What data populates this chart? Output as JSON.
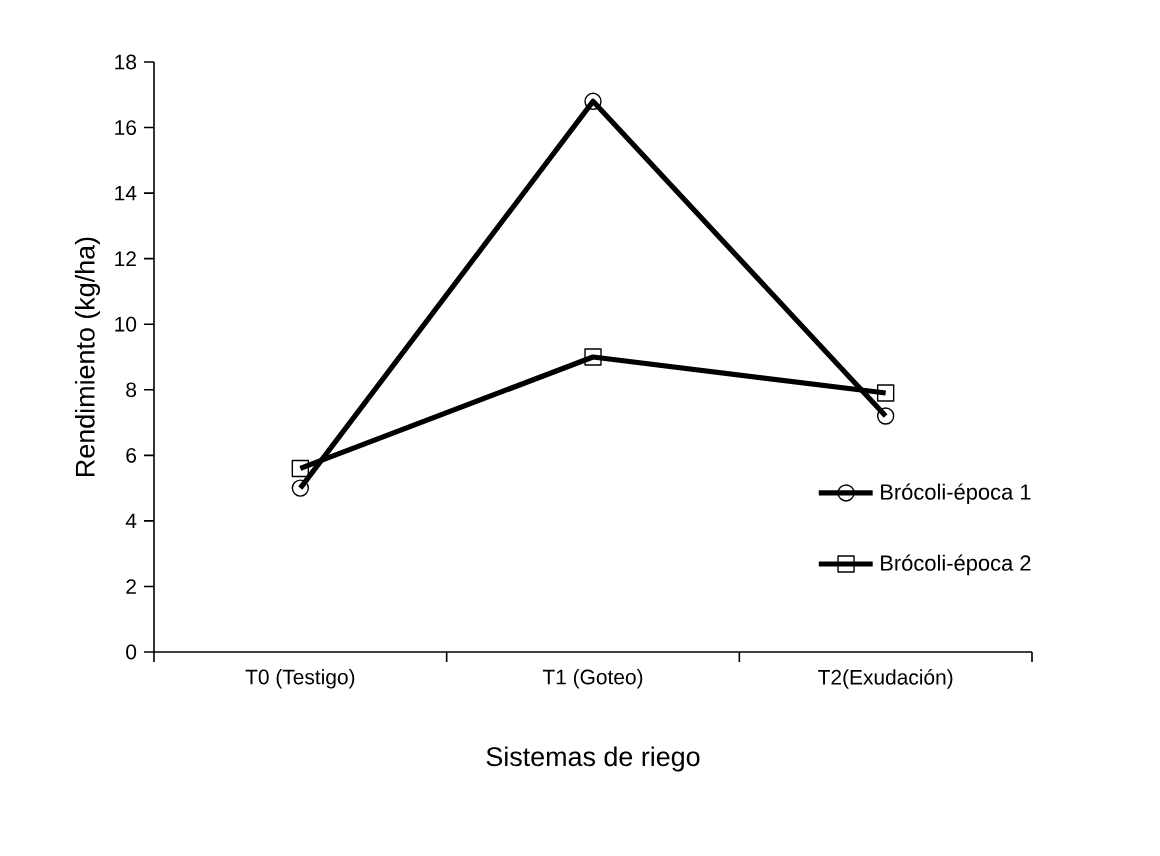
{
  "chart_data": {
    "type": "line",
    "xlabel": "Sistemas de riego",
    "ylabel": "Rendimiento (kg/ha)",
    "categories": [
      "T0 (Testigo)",
      "T1 (Goteo)",
      "T2(Exudación)"
    ],
    "series": [
      {
        "name": "Brócoli-época 1",
        "color": "#000000",
        "marker": "circle",
        "values": [
          5.0,
          16.8,
          7.2
        ]
      },
      {
        "name": "Brócoli-época 2",
        "color": "#000000",
        "marker": "square",
        "values": [
          5.6,
          9.0,
          7.9
        ]
      }
    ],
    "ylim": [
      0,
      18
    ],
    "yticks": [
      0,
      2,
      4,
      6,
      8,
      10,
      12,
      14,
      16,
      18
    ],
    "grid": false,
    "legend": "right",
    "line_style": "solid"
  }
}
